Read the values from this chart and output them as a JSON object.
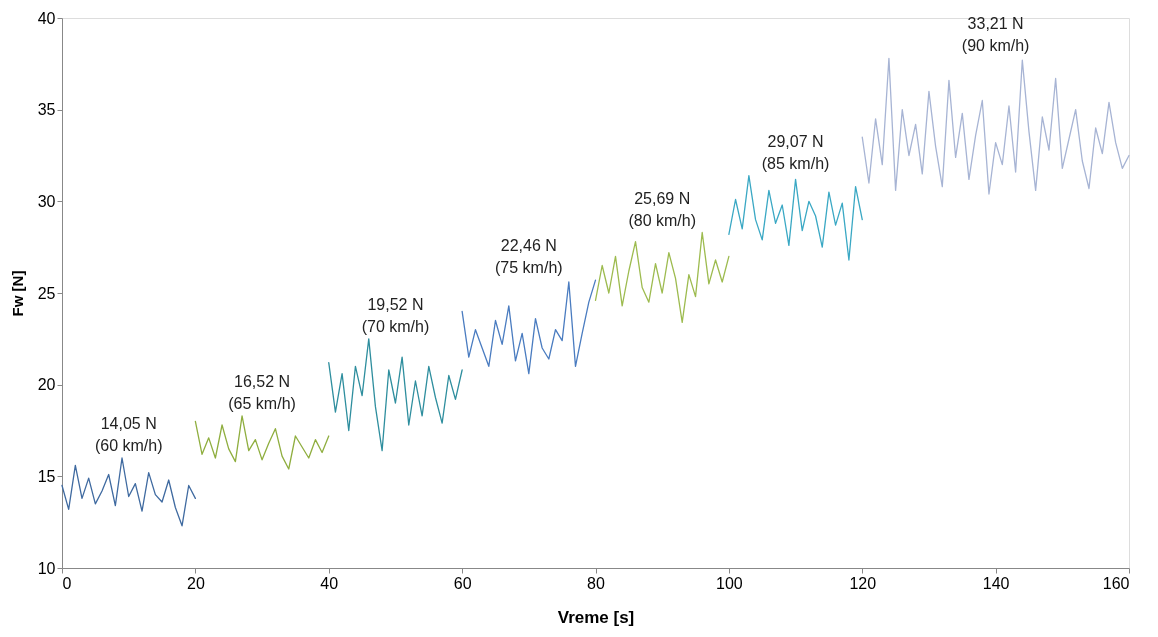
{
  "chart_data": {
    "type": "line",
    "xlabel": "Vreme [s]",
    "ylabel": "Fw [N]",
    "xlim": [
      0,
      160
    ],
    "xticks": [
      0,
      20,
      40,
      60,
      80,
      100,
      120,
      140,
      160
    ],
    "ylim": [
      10,
      40
    ],
    "yticks": [
      10,
      15,
      20,
      25,
      30,
      35,
      40
    ],
    "grid": false,
    "marker": "none",
    "line_style": "solid",
    "series": [
      {
        "color": "#3f6aa0",
        "x": [
          0,
          1,
          2,
          3,
          4,
          5,
          6,
          7,
          8,
          9,
          10,
          11,
          12,
          13,
          14,
          15,
          16,
          17,
          18,
          19,
          20
        ],
        "values": [
          14.5,
          13.2,
          15.6,
          13.8,
          14.9,
          13.5,
          14.2,
          15.1,
          13.4,
          16.0,
          13.9,
          14.6,
          13.1,
          15.2,
          14.0,
          13.6,
          14.8,
          13.3,
          12.3,
          14.5,
          13.8
        ]
      },
      {
        "color": "#8fae3f",
        "x": [
          20,
          21,
          22,
          23,
          24,
          25,
          26,
          27,
          28,
          29,
          30,
          31,
          32,
          33,
          34,
          35,
          36,
          37,
          38,
          39,
          40
        ],
        "values": [
          18.0,
          16.2,
          17.1,
          16.0,
          17.8,
          16.5,
          15.8,
          18.3,
          16.4,
          17.0,
          15.9,
          16.8,
          17.6,
          16.1,
          15.4,
          17.2,
          16.6,
          16.0,
          17.0,
          16.3,
          17.2
        ]
      },
      {
        "color": "#2e8e9e",
        "x": [
          40,
          41,
          42,
          43,
          44,
          45,
          46,
          47,
          48,
          49,
          50,
          51,
          52,
          53,
          54,
          55,
          56,
          57,
          58,
          59,
          60
        ],
        "values": [
          21.2,
          18.5,
          20.6,
          17.5,
          21.0,
          19.4,
          22.5,
          18.8,
          16.4,
          20.8,
          19.0,
          21.5,
          17.8,
          20.2,
          18.3,
          21.0,
          19.3,
          17.9,
          20.5,
          19.2,
          20.8
        ]
      },
      {
        "color": "#4a7cc0",
        "x": [
          60,
          61,
          62,
          63,
          64,
          65,
          66,
          67,
          68,
          69,
          70,
          71,
          72,
          73,
          74,
          75,
          76,
          77,
          78,
          79,
          80
        ],
        "values": [
          24.0,
          21.5,
          23.0,
          22.0,
          21.0,
          23.5,
          22.2,
          24.3,
          21.3,
          22.8,
          20.6,
          23.6,
          22.0,
          21.4,
          23.0,
          22.4,
          25.6,
          21.0,
          22.8,
          24.5,
          25.7
        ]
      },
      {
        "color": "#9dbb4f",
        "x": [
          80,
          81,
          82,
          83,
          84,
          85,
          86,
          87,
          88,
          89,
          90,
          91,
          92,
          93,
          94,
          95,
          96,
          97,
          98,
          99,
          100
        ],
        "values": [
          24.6,
          26.5,
          25.0,
          27.0,
          24.3,
          26.2,
          27.8,
          25.3,
          24.5,
          26.6,
          25.0,
          27.2,
          25.8,
          23.4,
          26.0,
          24.8,
          28.3,
          25.5,
          26.8,
          25.6,
          27.0
        ]
      },
      {
        "color": "#3aa8c4",
        "x": [
          100,
          101,
          102,
          103,
          104,
          105,
          106,
          107,
          108,
          109,
          110,
          111,
          112,
          113,
          114,
          115,
          116,
          117,
          118,
          119,
          120
        ],
        "values": [
          28.2,
          30.1,
          28.5,
          31.4,
          29.0,
          27.9,
          30.6,
          28.8,
          29.8,
          27.6,
          31.2,
          28.4,
          30.0,
          29.2,
          27.5,
          30.5,
          28.7,
          29.9,
          26.8,
          30.8,
          29.0
        ]
      },
      {
        "color": "#a7b4d4",
        "x": [
          120,
          121,
          122,
          123,
          124,
          125,
          126,
          127,
          128,
          129,
          130,
          131,
          132,
          133,
          134,
          135,
          136,
          137,
          138,
          139,
          140,
          141,
          142,
          143,
          144,
          145,
          146,
          147,
          148,
          149,
          150,
          151,
          152,
          153,
          154,
          155,
          156,
          157,
          158,
          159,
          160
        ],
        "values": [
          33.5,
          31.0,
          34.5,
          32.0,
          37.8,
          30.6,
          35.0,
          32.5,
          34.2,
          31.5,
          36.0,
          33.0,
          30.8,
          36.6,
          32.4,
          34.8,
          31.2,
          33.6,
          35.5,
          30.4,
          33.2,
          32.0,
          35.2,
          31.6,
          37.7,
          33.8,
          30.6,
          34.6,
          32.8,
          36.7,
          31.8,
          33.4,
          35.0,
          32.2,
          30.7,
          34.0,
          32.6,
          35.4,
          33.2,
          31.8,
          32.5
        ]
      }
    ],
    "annotations": [
      "14,05 N\n(60 km/h)",
      "16,52 N\n(65 km/h)",
      "19,52 N\n(70 km/h)",
      "22,46 N\n(75 km/h)",
      "25,69 N\n(80 km/h)",
      "29,07 N\n(85 km/h)",
      "33,21 N\n(90 km/h)"
    ]
  }
}
